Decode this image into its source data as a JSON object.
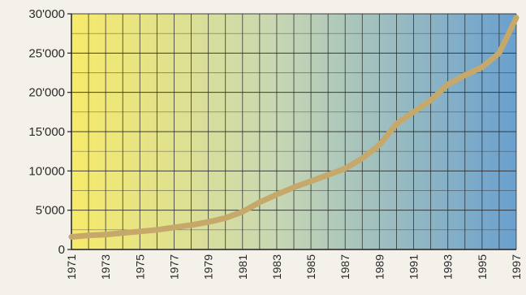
{
  "chart_data": {
    "type": "line",
    "title": "",
    "xlabel": "",
    "ylabel": "",
    "ylim": [
      0,
      30000
    ],
    "xlim": [
      1971,
      1997
    ],
    "grid": true,
    "legend": "none",
    "colors": {
      "line": "#c5a86a",
      "grid": "#2e2e2e",
      "bg_left": "#f7ea6a",
      "bg_mid": "#c9d8b2",
      "bg_right": "#6aa0cf"
    },
    "y_tick_values": [
      0,
      5000,
      10000,
      15000,
      20000,
      25000,
      30000
    ],
    "y_tick_labels": [
      "0",
      "5'000",
      "10'000",
      "15'000",
      "20'000",
      "25'000",
      "30'000"
    ],
    "x_tick_labels": [
      "1971",
      "1973",
      "1975",
      "1977",
      "1979",
      "1981",
      "1983",
      "1985",
      "1987",
      "1989",
      "1991",
      "1993",
      "1995",
      "1997"
    ],
    "x": [
      1971,
      1972,
      1973,
      1974,
      1975,
      1976,
      1977,
      1978,
      1979,
      1980,
      1981,
      1982,
      1983,
      1984,
      1985,
      1986,
      1987,
      1988,
      1989,
      1990,
      1991,
      1992,
      1993,
      1994,
      1995,
      1996,
      1997
    ],
    "values": [
      1600,
      1800,
      1900,
      2100,
      2300,
      2500,
      2800,
      3100,
      3500,
      4000,
      4800,
      6000,
      7000,
      7900,
      8700,
      9500,
      10300,
      11600,
      13300,
      16000,
      17500,
      19000,
      21000,
      22200,
      23200,
      25000,
      29500
    ]
  }
}
